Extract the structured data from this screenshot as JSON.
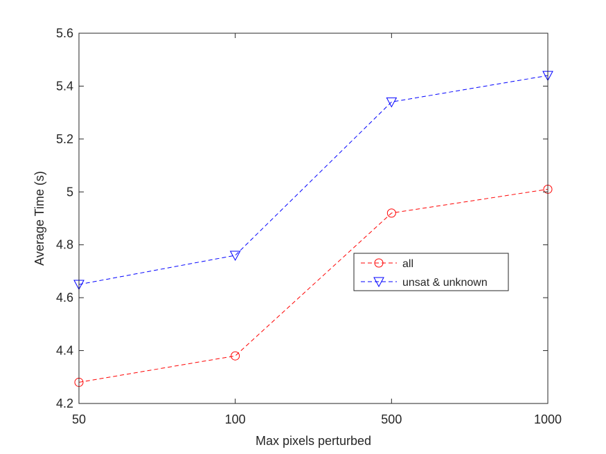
{
  "chart_data": {
    "type": "line",
    "x_is_categorical": true,
    "categories": [
      "50",
      "100",
      "500",
      "1000"
    ],
    "xlabel": "Max pixels perturbed",
    "ylabel": "Average Time (s)",
    "ylim": [
      4.2,
      5.6
    ],
    "yticks": [
      "4.2",
      "4.4",
      "4.6",
      "4.8",
      "5",
      "5.2",
      "5.4",
      "5.6"
    ],
    "grid": false,
    "legend_position": "center-right",
    "series": [
      {
        "name": "all",
        "values": [
          4.28,
          4.38,
          4.92,
          5.01
        ],
        "color": "#ff0000",
        "marker": "circle",
        "line_style": "dashed"
      },
      {
        "name": "unsat & unknown",
        "values": [
          4.65,
          4.76,
          5.34,
          5.44
        ],
        "color": "#0000ff",
        "marker": "triangle-down",
        "line_style": "dashed"
      }
    ]
  }
}
